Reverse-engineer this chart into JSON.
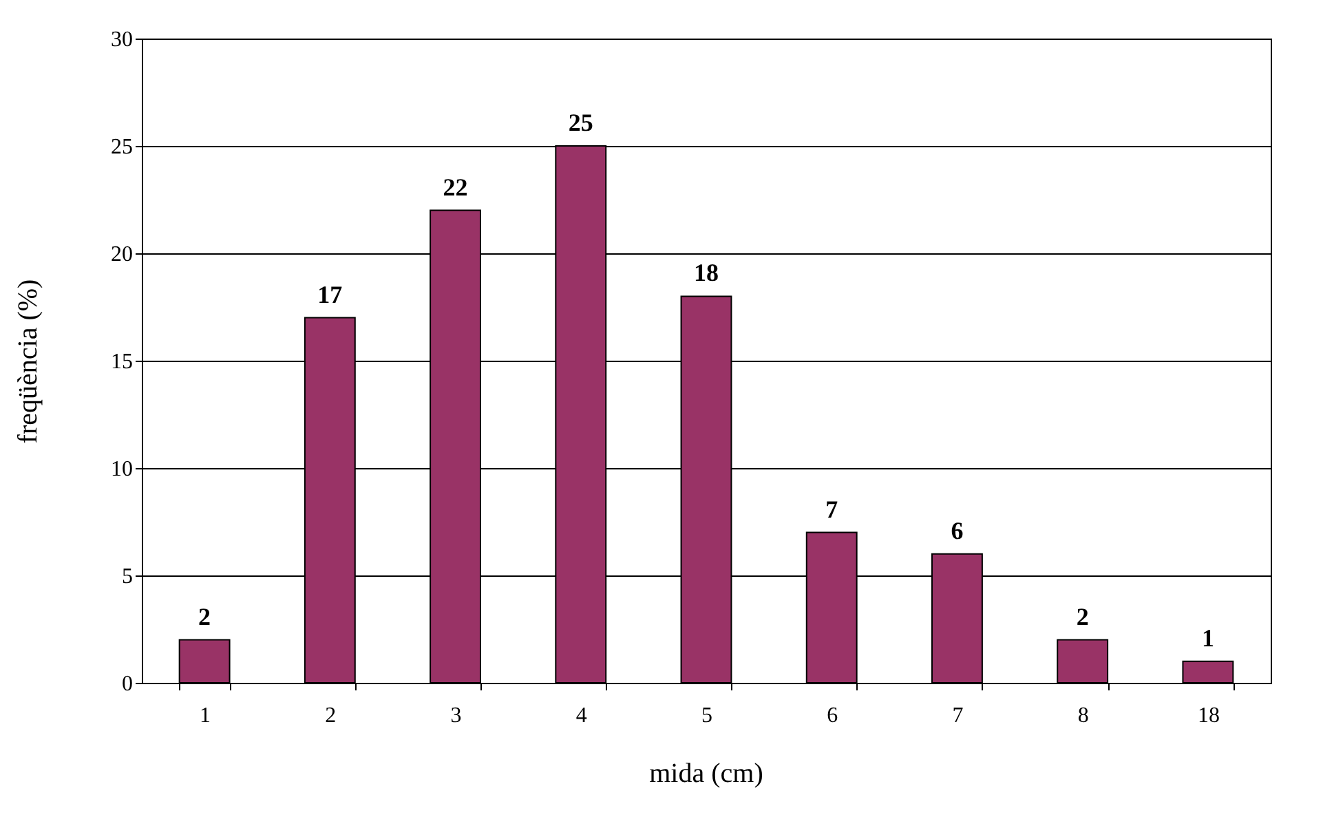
{
  "chart_data": {
    "type": "bar",
    "xlabel": "mida (cm)",
    "ylabel": "freqüència (%)",
    "categories": [
      "1",
      "2",
      "3",
      "4",
      "5",
      "6",
      "7",
      "8",
      "18"
    ],
    "values": [
      2,
      17,
      22,
      25,
      18,
      7,
      6,
      2,
      1
    ],
    "color": "#993366",
    "ylim": [
      0,
      30
    ],
    "yticks": [
      0,
      5,
      10,
      15,
      20,
      25,
      30
    ],
    "grid": "y",
    "data_labels": true
  }
}
